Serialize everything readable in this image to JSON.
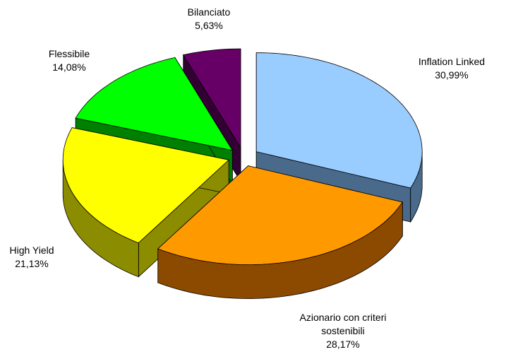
{
  "chart_data": {
    "type": "pie3d",
    "categories": [
      "Inflation Linked",
      "Azionario con criteri sostenibili",
      "High Yield",
      "Flessibile",
      "Bilanciato"
    ],
    "values": [
      30.99,
      28.17,
      21.13,
      14.08,
      5.63
    ],
    "value_labels": [
      "30,99%",
      "28,17%",
      "21,13%",
      "14,08%",
      "5,63%"
    ],
    "colors": [
      "#99ccff",
      "#ff9900",
      "#ffff00",
      "#00ff00",
      "#660066"
    ],
    "side_colors": [
      "#4a6a8c",
      "#8c4a00",
      "#8c8c00",
      "#008000",
      "#330033"
    ]
  }
}
